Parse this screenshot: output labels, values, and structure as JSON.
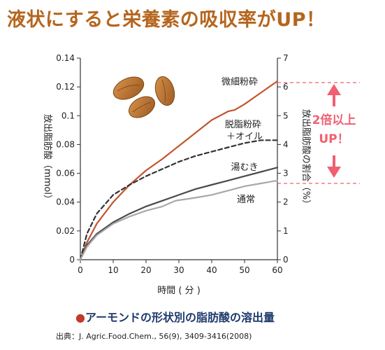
{
  "headline": "液状にすると栄養素の吸収率がUP！",
  "caption_bullet": "●",
  "caption": "アーモンドの形状別の脂肪酸の溶出量",
  "source": "出典：J. Agric.Food.Chem., 56(9), 3409-3416(2008)",
  "annotation": {
    "line1": "2倍以上",
    "line2": "UP！"
  },
  "colors": {
    "headline": "#b5651d",
    "fine": "#c0552f",
    "defatted": "#333333",
    "blanched": "#4a4a4a",
    "normal": "#a8a8a8",
    "annotation": "#f06070"
  },
  "icon": "almond-nuts-icon",
  "chart_data": {
    "type": "line",
    "xlabel": "時間 ( 分 )",
    "ylabel": "放出脂肪酸（mmol）",
    "y2label": "放出脂肪酸の割合（%）",
    "xlim": [
      0,
      60
    ],
    "ylim": [
      0,
      0.14
    ],
    "y2lim": [
      0,
      7
    ],
    "xticks": [
      "0",
      "10",
      "20",
      "30",
      "40",
      "50",
      "60"
    ],
    "yticks": [
      "0",
      "0.02",
      "0.04",
      "0.06",
      "0.08",
      "0.1",
      "0.12",
      "0.14"
    ],
    "y2ticks": [
      "0",
      "1",
      "2",
      "3",
      "4",
      "5",
      "6",
      "7"
    ],
    "series": [
      {
        "name": "微細粉砕",
        "style": "solid",
        "x": [
          0,
          2,
          5,
          10,
          15,
          20,
          25,
          30,
          35,
          40,
          45,
          47,
          50,
          55,
          60
        ],
        "y": [
          0,
          0.012,
          0.025,
          0.04,
          0.052,
          0.062,
          0.07,
          0.079,
          0.088,
          0.097,
          0.103,
          0.104,
          0.108,
          0.116,
          0.124
        ]
      },
      {
        "name": "脱脂粉砕＋オイル",
        "style": "dashed",
        "x": [
          0,
          2,
          5,
          10,
          15,
          20,
          25,
          30,
          35,
          40,
          45,
          50,
          55,
          60
        ],
        "y": [
          0,
          0.018,
          0.032,
          0.045,
          0.052,
          0.058,
          0.063,
          0.068,
          0.072,
          0.075,
          0.078,
          0.081,
          0.083,
          0.083
        ]
      },
      {
        "name": "湯むき",
        "style": "solid",
        "x": [
          0,
          2,
          5,
          10,
          15,
          20,
          25,
          30,
          35,
          40,
          45,
          50,
          55,
          60
        ],
        "y": [
          0,
          0.01,
          0.018,
          0.026,
          0.032,
          0.037,
          0.041,
          0.045,
          0.049,
          0.052,
          0.055,
          0.058,
          0.061,
          0.064
        ]
      },
      {
        "name": "通常",
        "style": "solid",
        "x": [
          0,
          2,
          5,
          10,
          15,
          20,
          25,
          27,
          29,
          32,
          35,
          40,
          45,
          50,
          55,
          60
        ],
        "y": [
          0,
          0.009,
          0.017,
          0.025,
          0.03,
          0.034,
          0.037,
          0.039,
          0.041,
          0.042,
          0.043,
          0.045,
          0.048,
          0.051,
          0.053,
          0.055
        ]
      }
    ]
  }
}
